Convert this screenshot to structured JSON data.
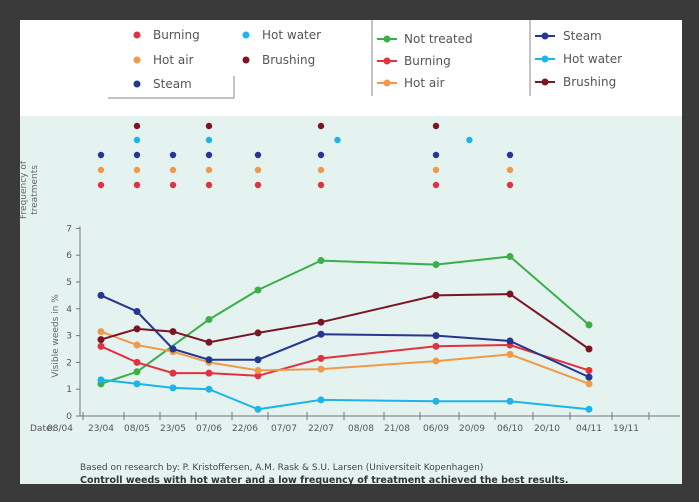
{
  "colors": {
    "not_treated": "#3cae4a",
    "burning": "#e3323f",
    "hot_air": "#ef9a4a",
    "hot_water": "#1db4ea",
    "steam": "#25378e",
    "brushing": "#7a1524"
  },
  "legend_left": [
    {
      "label": "Burning",
      "color_key": "burning"
    },
    {
      "label": "Hot water",
      "color_key": "hot_water"
    },
    {
      "label": "Hot air",
      "color_key": "hot_air"
    },
    {
      "label": "Brushing",
      "color_key": "brushing"
    },
    {
      "label": "Steam",
      "color_key": "steam"
    }
  ],
  "legend_mid": [
    {
      "label": "Not treated",
      "color_key": "not_treated"
    },
    {
      "label": "Burning",
      "color_key": "burning"
    },
    {
      "label": "Hot air",
      "color_key": "hot_air"
    }
  ],
  "legend_right": [
    {
      "label": "Steam",
      "color_key": "steam"
    },
    {
      "label": "Hot water",
      "color_key": "hot_water"
    },
    {
      "label": "Brushing",
      "color_key": "brushing"
    }
  ],
  "chart_data": {
    "type": "line",
    "ylabel": "Visible weeds in %",
    "freq_label_line1": "Frequency of",
    "freq_label_line2": "treatments",
    "date_prefix": "Date:",
    "ylim": [
      0,
      7
    ],
    "yticks": [
      "0",
      "1",
      "2",
      "3",
      "4",
      "5",
      "6",
      "7"
    ],
    "xticks": [
      "08/04",
      "23/04",
      "08/05",
      "23/05",
      "07/06",
      "22/06",
      "07/07",
      "22/07",
      "08/08",
      "21/08",
      "06/09",
      "20/09",
      "06/10",
      "20/10",
      "04/11",
      "19/11"
    ],
    "series": [
      {
        "name": "Not treated",
        "color_key": "not_treated",
        "x": [
          "23/04",
          "08/05",
          "07/06",
          "27/06",
          "22/07",
          "06/09",
          "06/10",
          "04/11"
        ],
        "values": [
          1.2,
          1.65,
          3.6,
          4.7,
          5.8,
          5.65,
          5.95,
          3.4
        ]
      },
      {
        "name": "Burning",
        "color_key": "burning",
        "x": [
          "23/04",
          "08/05",
          "23/05",
          "07/06",
          "27/06",
          "22/07",
          "06/09",
          "06/10",
          "04/11"
        ],
        "values": [
          2.6,
          2.0,
          1.6,
          1.6,
          1.5,
          2.15,
          2.6,
          2.65,
          1.7
        ]
      },
      {
        "name": "Hot air",
        "color_key": "hot_air",
        "x": [
          "23/04",
          "08/05",
          "23/05",
          "07/06",
          "27/06",
          "22/07",
          "06/09",
          "06/10",
          "04/11"
        ],
        "values": [
          3.15,
          2.65,
          2.4,
          2.0,
          1.7,
          1.75,
          2.05,
          2.3,
          1.2
        ]
      },
      {
        "name": "Steam",
        "color_key": "steam",
        "x": [
          "23/04",
          "08/05",
          "23/05",
          "07/06",
          "27/06",
          "22/07",
          "06/09",
          "06/10",
          "04/11"
        ],
        "values": [
          4.5,
          3.9,
          2.5,
          2.1,
          2.1,
          3.05,
          3.0,
          2.8,
          1.45
        ]
      },
      {
        "name": "Hot water",
        "color_key": "hot_water",
        "x": [
          "23/04",
          "08/05",
          "23/05",
          "07/06",
          "27/06",
          "22/07",
          "06/09",
          "06/10",
          "04/11"
        ],
        "values": [
          1.35,
          1.2,
          1.05,
          1.0,
          0.25,
          0.6,
          0.55,
          0.55,
          0.25
        ]
      },
      {
        "name": "Brushing",
        "color_key": "brushing",
        "x": [
          "23/04",
          "08/05",
          "23/05",
          "07/06",
          "27/06",
          "22/07",
          "06/09",
          "06/10",
          "04/11"
        ],
        "values": [
          2.85,
          3.25,
          3.15,
          2.75,
          3.1,
          3.5,
          4.5,
          4.55,
          2.5
        ]
      }
    ],
    "treatment_dates": [
      {
        "date": "23/04",
        "treatments": [
          "burning",
          "hot_air",
          "steam"
        ]
      },
      {
        "date": "08/05",
        "treatments": [
          "burning",
          "hot_air",
          "steam",
          "hot_water",
          "brushing"
        ]
      },
      {
        "date": "23/05",
        "treatments": [
          "burning",
          "hot_air",
          "steam"
        ]
      },
      {
        "date": "07/06",
        "treatments": [
          "burning",
          "hot_air",
          "steam",
          "hot_water",
          "brushing"
        ]
      },
      {
        "date": "27/06",
        "treatments": [
          "burning",
          "hot_air",
          "steam"
        ]
      },
      {
        "date": "22/07",
        "treatments": [
          "burning",
          "hot_air",
          "steam",
          "brushing"
        ]
      },
      {
        "date": "29/07",
        "treatments": [
          "hot_water"
        ]
      },
      {
        "date": "06/09",
        "treatments": [
          "burning",
          "hot_air",
          "steam",
          "brushing"
        ]
      },
      {
        "date": "19/09",
        "treatments": [
          "hot_water"
        ]
      },
      {
        "date": "06/10",
        "treatments": [
          "burning",
          "hot_air",
          "steam"
        ]
      }
    ]
  },
  "caption": {
    "source": "Based on research by: P. Kristoffersen, A.M. Rask & S.U. Larsen (Universiteit Kopenhagen)",
    "conclusion": "Controll weeds with hot water and a low frequency of treatment achieved the best results."
  }
}
